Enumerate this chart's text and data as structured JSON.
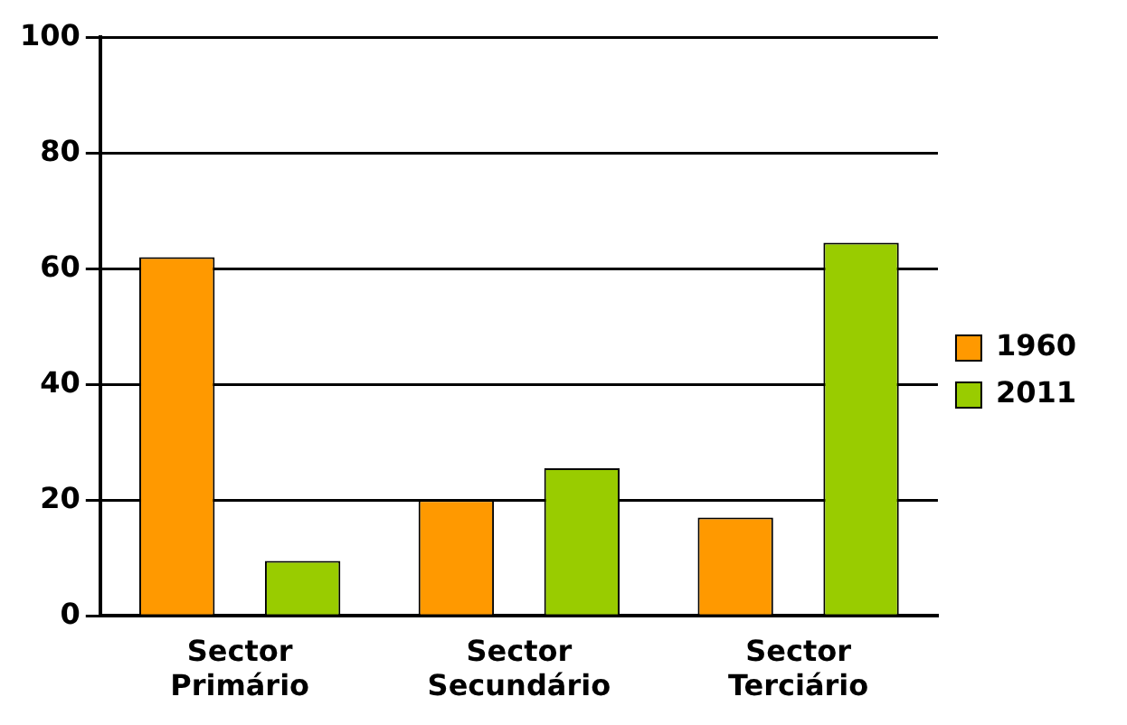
{
  "chart_data": {
    "type": "bar",
    "categories": [
      "Sector Primário",
      "Sector Secundário",
      "Sector Terciário"
    ],
    "series": [
      {
        "name": "1960",
        "color": "#ff9900",
        "values": [
          62,
          20,
          17
        ]
      },
      {
        "name": "2011",
        "color": "#99cc00",
        "values": [
          9.5,
          25.5,
          64.5
        ]
      }
    ],
    "ylim": [
      0,
      100
    ],
    "yticks": [
      0,
      20,
      40,
      60,
      80,
      100
    ],
    "grid": "y",
    "legend": "right"
  }
}
